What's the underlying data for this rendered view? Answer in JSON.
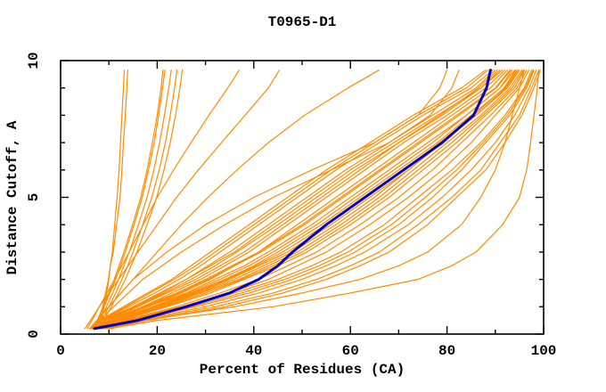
{
  "colors": {
    "model_line": "#ff8c00",
    "highlight_line": "#0000cd",
    "axis": "#000000",
    "background": "#ffffff"
  },
  "chart_data": {
    "type": "line",
    "title": "T0965-D1",
    "xlabel": "Percent of Residues (CA)",
    "ylabel": "Distance Cutoff, A",
    "xlim": [
      0,
      100
    ],
    "ylim": [
      0,
      10
    ],
    "x_major_ticks": [
      0,
      20,
      40,
      60,
      80,
      100
    ],
    "x_minor_ticks": [
      10,
      30,
      50,
      70,
      90
    ],
    "y_major_ticks": [
      0,
      5,
      10
    ],
    "y_minor_ticks": [
      1,
      2,
      3,
      4,
      6,
      7,
      8,
      9
    ],
    "grid": false,
    "legend": "none",
    "cutoffs": [
      0.2,
      0.5,
      1,
      1.5,
      2,
      2.5,
      3,
      4,
      5,
      6,
      7,
      8,
      9,
      9.65
    ],
    "series": [
      {
        "color": "orange",
        "percent": [
          8,
          8.5,
          9,
          9.5,
          10,
          10.3,
          10.7,
          11.2,
          11.7,
          12.1,
          12.4,
          12.7,
          13,
          13.2
        ]
      },
      {
        "color": "orange",
        "percent": [
          7.5,
          8,
          8.7,
          9.3,
          9.9,
          10.3,
          10.9,
          11.6,
          12.3,
          12.7,
          13,
          13.4,
          13.7,
          13.9
        ]
      },
      {
        "color": "orange",
        "percent": [
          7,
          7.8,
          9,
          10.2,
          11.4,
          12.4,
          13.4,
          15.2,
          16.9,
          18.2,
          19.4,
          20.3,
          21.1,
          21.6
        ]
      },
      {
        "color": "orange",
        "percent": [
          7.2,
          8.1,
          9.5,
          10.8,
          12,
          13.1,
          14.2,
          16.1,
          17.9,
          19.3,
          20.5,
          21.5,
          22.4,
          22.9
        ]
      },
      {
        "color": "orange",
        "percent": [
          7.5,
          8.5,
          10,
          11.4,
          12.7,
          13.9,
          15,
          17,
          18.9,
          20.4,
          21.7,
          22.7,
          23.6,
          24.1
        ]
      },
      {
        "color": "orange",
        "percent": [
          7.8,
          8.9,
          10.5,
          12,
          13.4,
          14.6,
          15.8,
          17.9,
          19.9,
          21.4,
          22.7,
          23.8,
          24.7,
          25.2
        ]
      },
      {
        "color": "orange",
        "percent": [
          6.8,
          7.6,
          8.8,
          10,
          11.1,
          12.1,
          13.1,
          14.9,
          16.6,
          17.9,
          19,
          20,
          20.8,
          21.2
        ]
      },
      {
        "color": "orange",
        "percent": [
          5.5,
          6.5,
          8,
          9.6,
          11.2,
          12.7,
          14.2,
          17.1,
          20,
          23.4,
          27,
          30.7,
          34.6,
          37
        ]
      },
      {
        "color": "orange",
        "percent": [
          5,
          6.2,
          8,
          10,
          12,
          14,
          16,
          20,
          24,
          28.5,
          33.3,
          38.2,
          43,
          45.3
        ]
      },
      {
        "color": "orange",
        "percent": [
          6,
          7.5,
          10,
          12.5,
          15,
          17.5,
          20,
          25,
          30.5,
          36.5,
          43,
          50.5,
          59.5,
          65.9
        ]
      },
      {
        "color": "orange",
        "percent": [
          6,
          7.5,
          10,
          12.5,
          15,
          18.5,
          22,
          30,
          40,
          52,
          65,
          74,
          78.5,
          80
        ]
      },
      {
        "color": "orange",
        "percent": [
          6.5,
          8,
          11,
          14,
          17,
          21,
          25,
          34,
          44,
          56,
          68,
          76.5,
          81,
          82.5
        ]
      },
      {
        "color": "orange",
        "percent": [
          6,
          8,
          13,
          18,
          23,
          27,
          31,
          39,
          47,
          55,
          64,
          73,
          83,
          88
        ]
      },
      {
        "color": "orange",
        "percent": [
          6.5,
          8.5,
          14,
          19.5,
          24.5,
          29,
          33,
          41,
          49,
          57,
          66,
          75,
          85,
          89.5
        ]
      },
      {
        "color": "orange",
        "percent": [
          7,
          9,
          15,
          21,
          26,
          30.5,
          35,
          43,
          51,
          59,
          68,
          77,
          86,
          90
        ]
      },
      {
        "color": "orange",
        "percent": [
          6,
          8.5,
          15,
          20.5,
          26,
          31,
          36,
          44,
          52,
          60,
          69,
          78,
          87,
          91
        ]
      },
      {
        "color": "orange",
        "percent": [
          7,
          10,
          17,
          23,
          29,
          34,
          39,
          47,
          55,
          63,
          71,
          80,
          88,
          92
        ]
      },
      {
        "color": "orange",
        "percent": [
          7.5,
          10.5,
          18,
          25,
          31,
          36,
          41,
          49,
          57,
          65,
          73,
          81,
          89,
          92.5
        ]
      },
      {
        "color": "orange",
        "percent": [
          6.5,
          9.5,
          17,
          24,
          30,
          35.5,
          41,
          50,
          58,
          66,
          74,
          82,
          90,
          93
        ]
      },
      {
        "color": "orange",
        "percent": [
          7,
          10,
          18,
          26,
          32,
          38,
          43,
          52,
          60,
          68,
          76,
          84,
          91,
          94
        ]
      },
      {
        "color": "orange",
        "percent": [
          8,
          11,
          19,
          27,
          34,
          40,
          45,
          54,
          62,
          70,
          78,
          85,
          92,
          94.5
        ]
      },
      {
        "color": "orange",
        "percent": [
          7.5,
          11,
          20,
          28,
          35,
          41,
          47,
          56,
          64,
          72,
          79,
          86,
          92.5,
          95
        ]
      },
      {
        "color": "orange",
        "percent": [
          8,
          12,
          21,
          29,
          37,
          43,
          49,
          58,
          66,
          73,
          80,
          87,
          93,
          95.5
        ]
      },
      {
        "color": "orange",
        "percent": [
          8.5,
          12.5,
          22,
          31,
          38,
          45,
          51,
          60,
          68,
          75,
          82,
          88,
          94,
          96
        ]
      },
      {
        "color": "orange",
        "percent": [
          9,
          13,
          24,
          33,
          41,
          47,
          53,
          62,
          70,
          77,
          83,
          89,
          94.5,
          96.5
        ]
      },
      {
        "color": "orange",
        "percent": [
          8.5,
          13.5,
          25,
          35,
          43,
          49,
          55,
          64,
          72,
          79,
          85,
          90,
          95,
          97
        ]
      },
      {
        "color": "orange",
        "percent": [
          9,
          14,
          26,
          36,
          45,
          52,
          58,
          67,
          74,
          81,
          87,
          92,
          96,
          97.5
        ]
      },
      {
        "color": "orange",
        "percent": [
          9.5,
          15,
          28,
          39,
          48,
          55,
          61,
          70,
          77,
          83,
          88,
          93,
          96.5,
          98
        ]
      },
      {
        "color": "orange",
        "percent": [
          10,
          16,
          30,
          41,
          50,
          57,
          63,
          72,
          79,
          85,
          90,
          94,
          97,
          98.5
        ]
      },
      {
        "color": "orange",
        "percent": [
          10,
          17,
          32,
          44,
          53,
          60,
          66,
          74,
          81,
          87,
          91,
          95,
          97.5,
          99
        ]
      },
      {
        "color": "orange",
        "percent": [
          7,
          9.5,
          16,
          22,
          28,
          33,
          38,
          46,
          54,
          62,
          70,
          79,
          87,
          91.5
        ]
      },
      {
        "color": "orange",
        "percent": [
          7.5,
          10.5,
          19,
          26.5,
          33,
          39,
          44,
          53,
          61,
          69,
          77,
          84,
          91,
          93.5
        ]
      },
      {
        "color": "orange",
        "percent": [
          8,
          11.5,
          20.5,
          28.5,
          36,
          42,
          48,
          57,
          65,
          72,
          79,
          86,
          92.2,
          94.8
        ]
      },
      {
        "color": "orange",
        "percent": [
          6.8,
          9.2,
          15.5,
          21.5,
          27,
          32,
          36.5,
          45,
          53,
          61,
          70,
          78.5,
          86.5,
          90.5
        ]
      },
      {
        "color": "orange",
        "percent": [
          7.2,
          10.2,
          17.5,
          24.5,
          30.5,
          36,
          41.5,
          50.5,
          58.5,
          66.5,
          74.5,
          82.5,
          90.2,
          93.2
        ]
      },
      {
        "color": "orange",
        "percent": [
          8.2,
          12.2,
          21.5,
          30,
          37.5,
          44,
          50,
          59,
          67,
          74,
          81,
          87.5,
          93.5,
          95.8
        ]
      },
      {
        "color": "orange",
        "percent": [
          9.2,
          14.5,
          27,
          37.5,
          46.5,
          53.5,
          59.5,
          68.5,
          75.5,
          82,
          87.5,
          92.5,
          96.2,
          97.8
        ]
      },
      {
        "color": "orange",
        "percent": [
          6.2,
          8.2,
          13.5,
          18.5,
          23.5,
          28,
          32,
          40,
          48,
          56,
          65,
          74,
          84,
          88.5
        ]
      },
      {
        "color": "orange",
        "percent": [
          10.5,
          18,
          34,
          46,
          55,
          62,
          68,
          76,
          82,
          88,
          92,
          95.5,
          98,
          99.3
        ]
      },
      {
        "color": "orange",
        "percent": [
          7.8,
          11.2,
          19.5,
          27.5,
          34.5,
          40.5,
          46,
          55,
          63,
          71,
          78.5,
          85.5,
          91.8,
          94.2
        ]
      },
      {
        "color": "orange",
        "percent": [
          10,
          20,
          44,
          60,
          74,
          81,
          86,
          91.5,
          95,
          96.5,
          97.3,
          98,
          98.7,
          99
        ]
      },
      {
        "color": "orange",
        "percent": [
          9,
          17,
          36,
          50,
          62,
          70,
          76,
          83,
          87,
          90,
          92,
          93.5,
          95,
          96
        ]
      },
      {
        "color": "blue",
        "percent": [
          7,
          16,
          26,
          35,
          41,
          45,
          48,
          55,
          63,
          71,
          79,
          85.5,
          88.2,
          89
        ]
      }
    ]
  },
  "layout_values": {
    "x_tick_labels": [
      "0",
      "20",
      "40",
      "60",
      "80",
      "100"
    ],
    "y_tick_labels": [
      "0",
      "5",
      "10"
    ]
  }
}
